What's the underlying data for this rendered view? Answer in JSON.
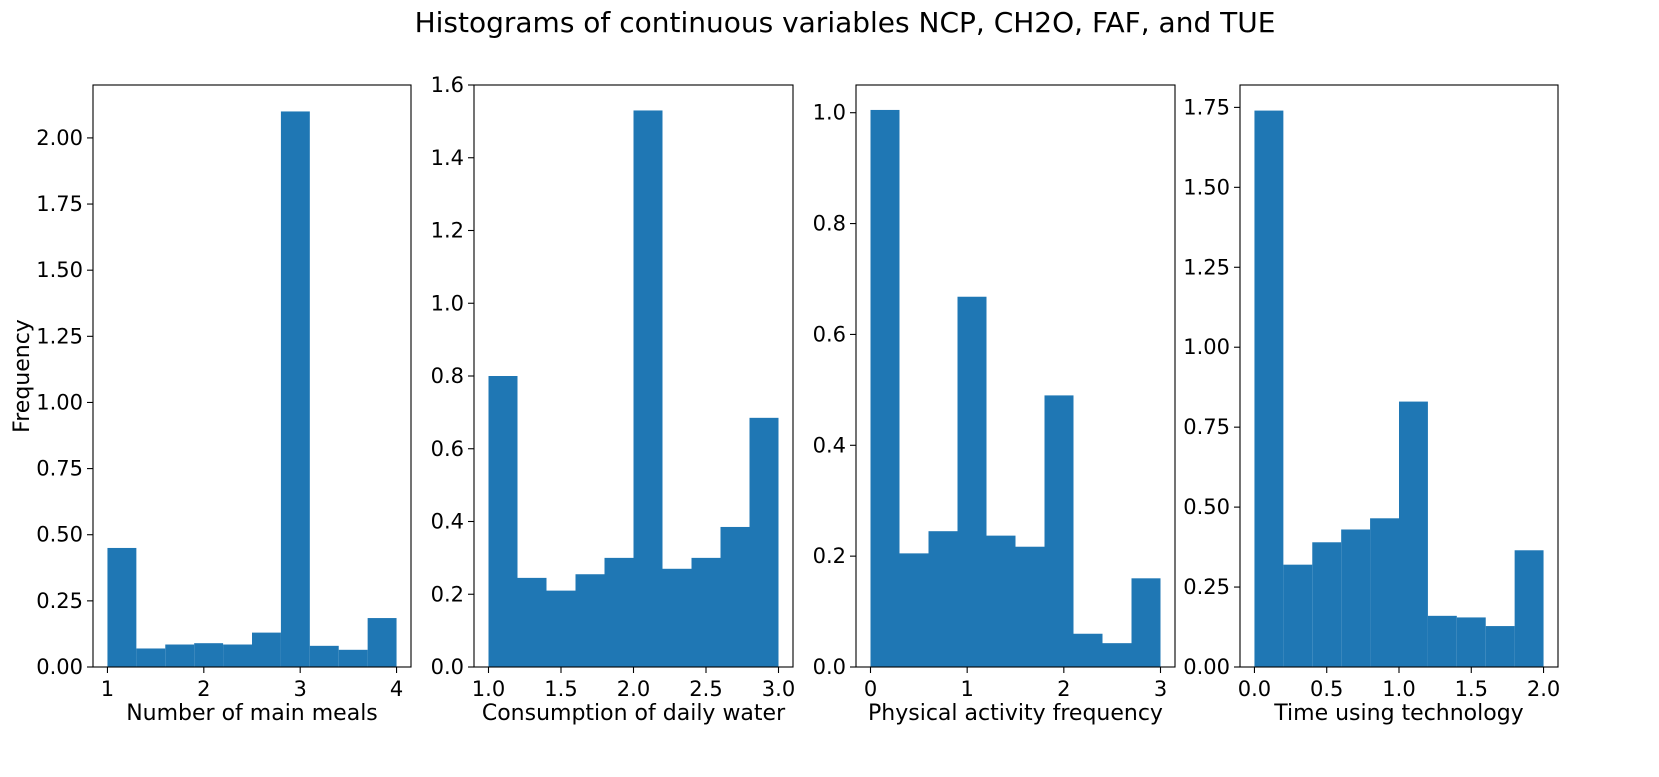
{
  "figure": {
    "title": "Histograms of continuous variables NCP, CH2O, FAF, and TUE",
    "bar_color": "#1f77b4"
  },
  "chart_data": [
    {
      "type": "bar",
      "title": "",
      "xlabel": "Number of main meals",
      "ylabel": "Frequency",
      "xlim": [
        0.85,
        4.15
      ],
      "ylim": [
        0,
        2.2
      ],
      "bin_edges": [
        1.0,
        1.3,
        1.6,
        1.9,
        2.2,
        2.5,
        2.8,
        3.1,
        3.4,
        3.7,
        4.0
      ],
      "values": [
        0.45,
        0.07,
        0.085,
        0.09,
        0.085,
        0.13,
        2.1,
        0.08,
        0.065,
        0.185
      ],
      "xticks": [
        1,
        2,
        3,
        4
      ],
      "xtick_labels": [
        "1",
        "2",
        "3",
        "4"
      ],
      "yticks": [
        0,
        0.25,
        0.5,
        0.75,
        1.0,
        1.25,
        1.5,
        1.75,
        2.0
      ],
      "ytick_labels": [
        "0.00",
        "0.25",
        "0.50",
        "0.75",
        "1.00",
        "1.25",
        "1.50",
        "1.75",
        "2.00"
      ],
      "grid": false,
      "color": "#1f77b4"
    },
    {
      "type": "bar",
      "title": "",
      "xlabel": "Consumption of daily water",
      "ylabel": "",
      "xlim": [
        0.9,
        3.1
      ],
      "ylim": [
        0,
        1.6
      ],
      "bin_edges": [
        1.0,
        1.2,
        1.4,
        1.6,
        1.8,
        2.0,
        2.2,
        2.4,
        2.6,
        2.8,
        3.0
      ],
      "values": [
        0.8,
        0.245,
        0.21,
        0.255,
        0.3,
        1.53,
        0.27,
        0.3,
        0.385,
        0.685
      ],
      "xticks": [
        1.0,
        1.5,
        2.0,
        2.5,
        3.0
      ],
      "xtick_labels": [
        "1.0",
        "1.5",
        "2.0",
        "2.5",
        "3.0"
      ],
      "yticks": [
        0,
        0.2,
        0.4,
        0.6,
        0.8,
        1.0,
        1.2,
        1.4,
        1.6
      ],
      "ytick_labels": [
        "0.0",
        "0.2",
        "0.4",
        "0.6",
        "0.8",
        "1.0",
        "1.2",
        "1.4",
        "1.6"
      ],
      "grid": false,
      "color": "#1f77b4"
    },
    {
      "type": "bar",
      "title": "",
      "xlabel": "Physical activity frequency",
      "ylabel": "",
      "xlim": [
        -0.15,
        3.15
      ],
      "ylim": [
        0,
        1.05
      ],
      "bin_edges": [
        0.0,
        0.3,
        0.6,
        0.9,
        1.2,
        1.5,
        1.8,
        2.1,
        2.4,
        2.7,
        3.0
      ],
      "values": [
        1.005,
        0.205,
        0.245,
        0.668,
        0.237,
        0.217,
        0.49,
        0.06,
        0.043,
        0.16
      ],
      "xticks": [
        0,
        1,
        2,
        3
      ],
      "xtick_labels": [
        "0",
        "1",
        "2",
        "3"
      ],
      "yticks": [
        0,
        0.2,
        0.4,
        0.6,
        0.8,
        1.0
      ],
      "ytick_labels": [
        "0.0",
        "0.2",
        "0.4",
        "0.6",
        "0.8",
        "1.0"
      ],
      "grid": false,
      "color": "#1f77b4"
    },
    {
      "type": "bar",
      "title": "",
      "xlabel": "Time using technology",
      "ylabel": "",
      "xlim": [
        -0.1,
        2.1
      ],
      "ylim": [
        0,
        1.82
      ],
      "bin_edges": [
        0.0,
        0.2,
        0.4,
        0.6,
        0.8,
        1.0,
        1.2,
        1.4,
        1.6,
        1.8,
        2.0
      ],
      "values": [
        1.74,
        0.32,
        0.39,
        0.43,
        0.465,
        0.83,
        0.16,
        0.155,
        0.128,
        0.365
      ],
      "xticks": [
        0.0,
        0.5,
        1.0,
        1.5,
        2.0
      ],
      "xtick_labels": [
        "0.0",
        "0.5",
        "1.0",
        "1.5",
        "2.0"
      ],
      "yticks": [
        0,
        0.25,
        0.5,
        0.75,
        1.0,
        1.25,
        1.5,
        1.75
      ],
      "ytick_labels": [
        "0.00",
        "0.25",
        "0.50",
        "0.75",
        "1.00",
        "1.25",
        "1.50",
        "1.75"
      ],
      "grid": false,
      "color": "#1f77b4"
    }
  ]
}
